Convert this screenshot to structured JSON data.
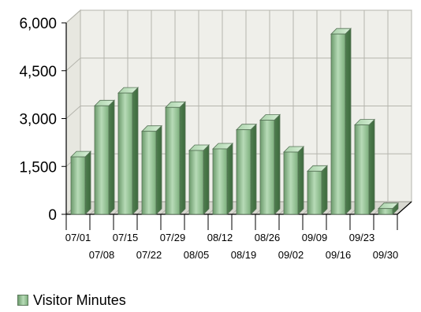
{
  "chart_data": {
    "type": "bar",
    "title": "",
    "xlabel": "",
    "ylabel": "",
    "ylim": [
      0,
      6000
    ],
    "y_ticks": [
      "0",
      "1,500",
      "3,000",
      "4,500",
      "6,000"
    ],
    "categories": [
      "07/01",
      "07/08",
      "07/15",
      "07/22",
      "07/29",
      "08/05",
      "08/12",
      "08/19",
      "08/26",
      "09/02",
      "09/09",
      "09/16",
      "09/23",
      "09/30"
    ],
    "series": [
      {
        "name": "Visitor Minutes",
        "values": [
          1800,
          3400,
          3800,
          2600,
          3350,
          2000,
          2050,
          2650,
          2950,
          1950,
          1350,
          5650,
          2800,
          180
        ]
      }
    ],
    "grid": true,
    "legend_position": "bottom-left",
    "colors": {
      "bar_front_dark": "#6c9a6c",
      "bar_front_light": "#b7dbb7",
      "bar_top": "#c8e6c8",
      "bar_side": "#4f7f4f",
      "bar_outline": "#567256",
      "wall": "#efefea",
      "floor": "#d8d8d0",
      "grid": "#b5b5ad",
      "axis": "#000000"
    }
  },
  "legend": {
    "label": "Visitor Minutes"
  }
}
